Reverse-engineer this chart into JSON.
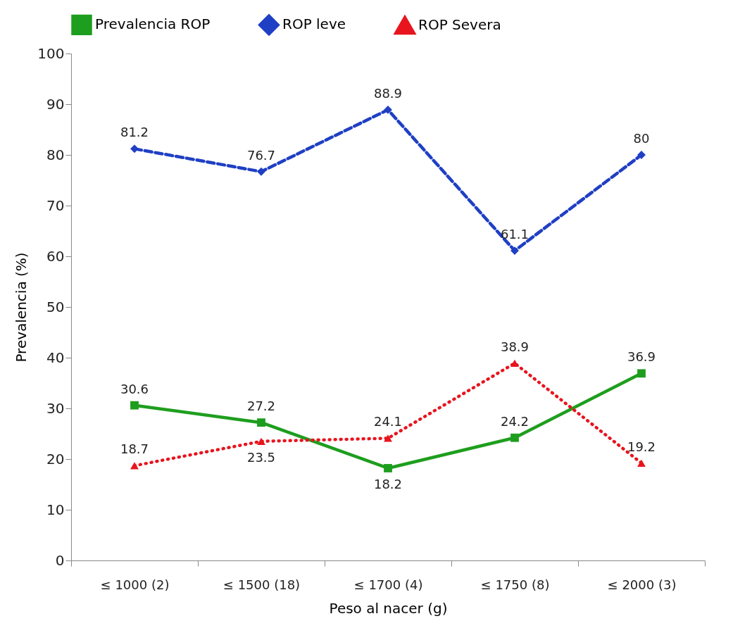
{
  "chart_data": {
    "type": "line",
    "xlabel": "Peso al nacer (g)",
    "ylabel": "Prevalencia (%)",
    "categories": [
      "≤ 1000 (2)",
      "≤ 1500 (18)",
      "≤ 1700 (4)",
      "≤ 1750 (8)",
      "≤ 2000 (3)"
    ],
    "series": [
      {
        "name": "Prevalencia ROP",
        "color": "#1e9e1e",
        "marker": "square",
        "line_style": "solid",
        "values": [
          30.6,
          27.2,
          18.2,
          24.2,
          36.9
        ]
      },
      {
        "name": "ROP leve",
        "color": "#1f3fc4",
        "marker": "diamond",
        "line_style": "dashed",
        "values": [
          81.2,
          76.7,
          88.9,
          61.1,
          80
        ]
      },
      {
        "name": "ROP Severa",
        "color": "#e8141e",
        "marker": "triangle",
        "line_style": "dotted",
        "values": [
          18.7,
          23.5,
          24.1,
          38.9,
          19.2
        ]
      }
    ],
    "ylim": [
      0,
      100
    ],
    "yticks": [
      0,
      10,
      20,
      30,
      40,
      50,
      60,
      70,
      80,
      90,
      100
    ],
    "grid": false,
    "legend": "top",
    "data_labels": true
  }
}
